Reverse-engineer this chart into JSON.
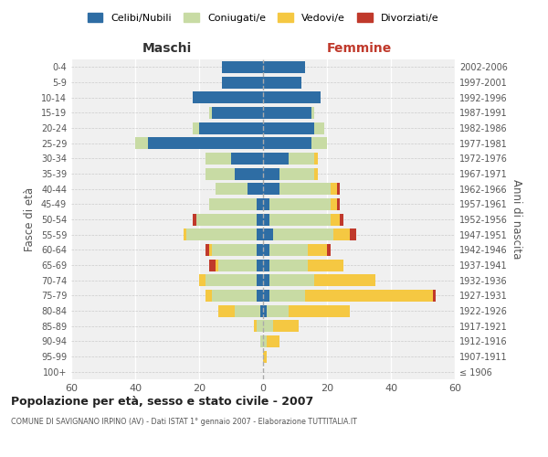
{
  "age_groups": [
    "100+",
    "95-99",
    "90-94",
    "85-89",
    "80-84",
    "75-79",
    "70-74",
    "65-69",
    "60-64",
    "55-59",
    "50-54",
    "45-49",
    "40-44",
    "35-39",
    "30-34",
    "25-29",
    "20-24",
    "15-19",
    "10-14",
    "5-9",
    "0-4"
  ],
  "birth_years": [
    "≤ 1906",
    "1907-1911",
    "1912-1916",
    "1917-1921",
    "1922-1926",
    "1927-1931",
    "1932-1936",
    "1937-1941",
    "1942-1946",
    "1947-1951",
    "1952-1956",
    "1957-1961",
    "1962-1966",
    "1967-1971",
    "1972-1976",
    "1977-1981",
    "1982-1986",
    "1987-1991",
    "1992-1996",
    "1997-2001",
    "2002-2006"
  ],
  "maschi": {
    "celibi": [
      0,
      0,
      0,
      0,
      1,
      2,
      2,
      2,
      2,
      2,
      2,
      2,
      5,
      9,
      10,
      36,
      20,
      16,
      22,
      13,
      13
    ],
    "coniugati": [
      0,
      0,
      1,
      2,
      8,
      14,
      16,
      12,
      14,
      22,
      19,
      15,
      10,
      9,
      8,
      4,
      2,
      1,
      0,
      0,
      0
    ],
    "vedovi": [
      0,
      0,
      0,
      1,
      5,
      2,
      2,
      1,
      1,
      1,
      0,
      0,
      0,
      0,
      0,
      0,
      0,
      0,
      0,
      0,
      0
    ],
    "divorziati": [
      0,
      0,
      0,
      0,
      0,
      0,
      0,
      2,
      1,
      0,
      1,
      0,
      0,
      0,
      0,
      0,
      0,
      0,
      0,
      0,
      0
    ]
  },
  "femmine": {
    "nubili": [
      0,
      0,
      0,
      0,
      1,
      2,
      2,
      2,
      2,
      3,
      2,
      2,
      5,
      5,
      8,
      15,
      16,
      15,
      18,
      12,
      13
    ],
    "coniugate": [
      0,
      0,
      1,
      3,
      7,
      11,
      14,
      12,
      12,
      19,
      19,
      19,
      16,
      11,
      8,
      5,
      3,
      1,
      0,
      0,
      0
    ],
    "vedove": [
      0,
      1,
      4,
      8,
      19,
      40,
      19,
      11,
      6,
      5,
      3,
      2,
      2,
      1,
      1,
      0,
      0,
      0,
      0,
      0,
      0
    ],
    "divorziate": [
      0,
      0,
      0,
      0,
      0,
      1,
      0,
      0,
      1,
      2,
      1,
      1,
      1,
      0,
      0,
      0,
      0,
      0,
      0,
      0,
      0
    ]
  },
  "colors": {
    "celibi": "#2e6da4",
    "coniugati": "#c8dba4",
    "vedovi": "#f5c842",
    "divorziati": "#c0392b"
  },
  "title": "Popolazione per età, sesso e stato civile - 2007",
  "subtitle": "COMUNE DI SAVIGNANO IRPINO (AV) - Dati ISTAT 1° gennaio 2007 - Elaborazione TUTTITALIA.IT",
  "xlabel_left": "Maschi",
  "xlabel_right": "Femmine",
  "ylabel_left": "Fasce di età",
  "ylabel_right": "Anni di nascita",
  "xlim": 60,
  "background": "#f0f0f0",
  "legend_labels": [
    "Celibi/Nubili",
    "Coniugati/e",
    "Vedovi/e",
    "Divorziati/e"
  ]
}
